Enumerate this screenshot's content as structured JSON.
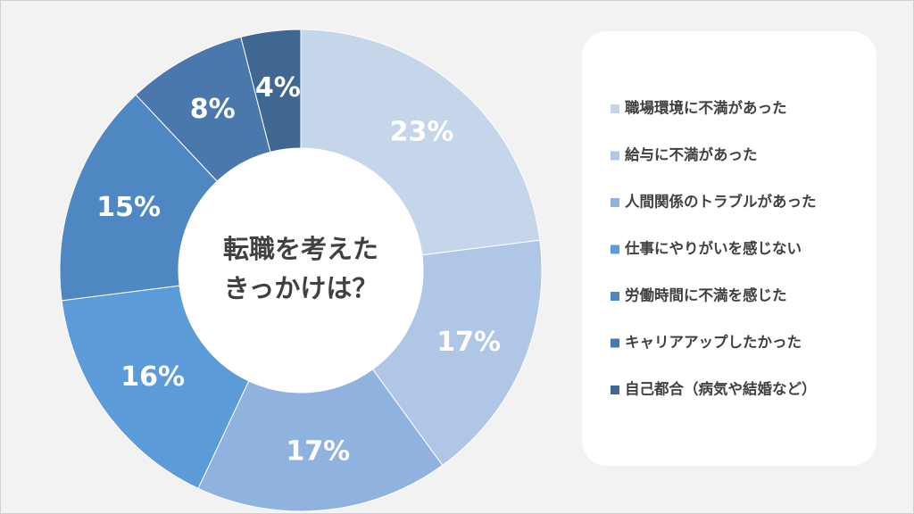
{
  "chart_data": {
    "type": "pie",
    "center_text": [
      "転職を考えた",
      "きっかけは？"
    ],
    "categories": [
      "職場環境に不満があった",
      "給与に不満があった",
      "人間関係のトラブルがあった",
      "仕事にやりがいを感じない",
      "労働時間に不満を感じた",
      "キャリアアップしたかった",
      "自己都合（病気や結婚など）"
    ],
    "values": [
      23,
      17,
      17,
      16,
      15,
      8,
      4
    ],
    "value_labels": [
      "23%",
      "17%",
      "17%",
      "16%",
      "15%",
      "8%",
      "4%"
    ],
    "colors": [
      "#c5d5ea",
      "#afc6e6",
      "#8fb2de",
      "#5b9bd8",
      "#4f87c2",
      "#4a78ad",
      "#3f6792"
    ],
    "legend": "right"
  }
}
